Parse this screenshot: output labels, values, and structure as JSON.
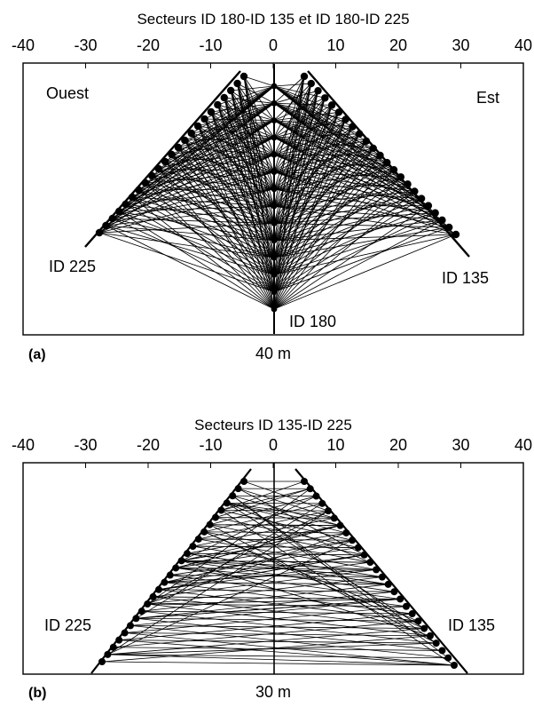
{
  "panels": [
    {
      "title": "Secteurs ID 180-ID 135 et ID 180-ID 225",
      "x_ticks": [
        "-40",
        "-30",
        "-20",
        "-10",
        "0",
        "10",
        "20",
        "30",
        "40"
      ],
      "corner_left": "Ouest",
      "corner_right": "Est",
      "sector_left": "ID 225",
      "sector_right": "ID 135",
      "sector_bottom": "ID 180",
      "tag": "(a)",
      "depth_label": "40 m",
      "xlim": [
        -40,
        40
      ]
    },
    {
      "title": "Secteurs ID 135-ID 225",
      "x_ticks": [
        "-40",
        "-30",
        "-20",
        "-10",
        "0",
        "10",
        "20",
        "30",
        "40"
      ],
      "sector_left": "ID 225",
      "sector_right": "ID 135",
      "tag": "(b)",
      "depth_label": "30 m",
      "xlim": [
        -40,
        40
      ]
    }
  ]
}
